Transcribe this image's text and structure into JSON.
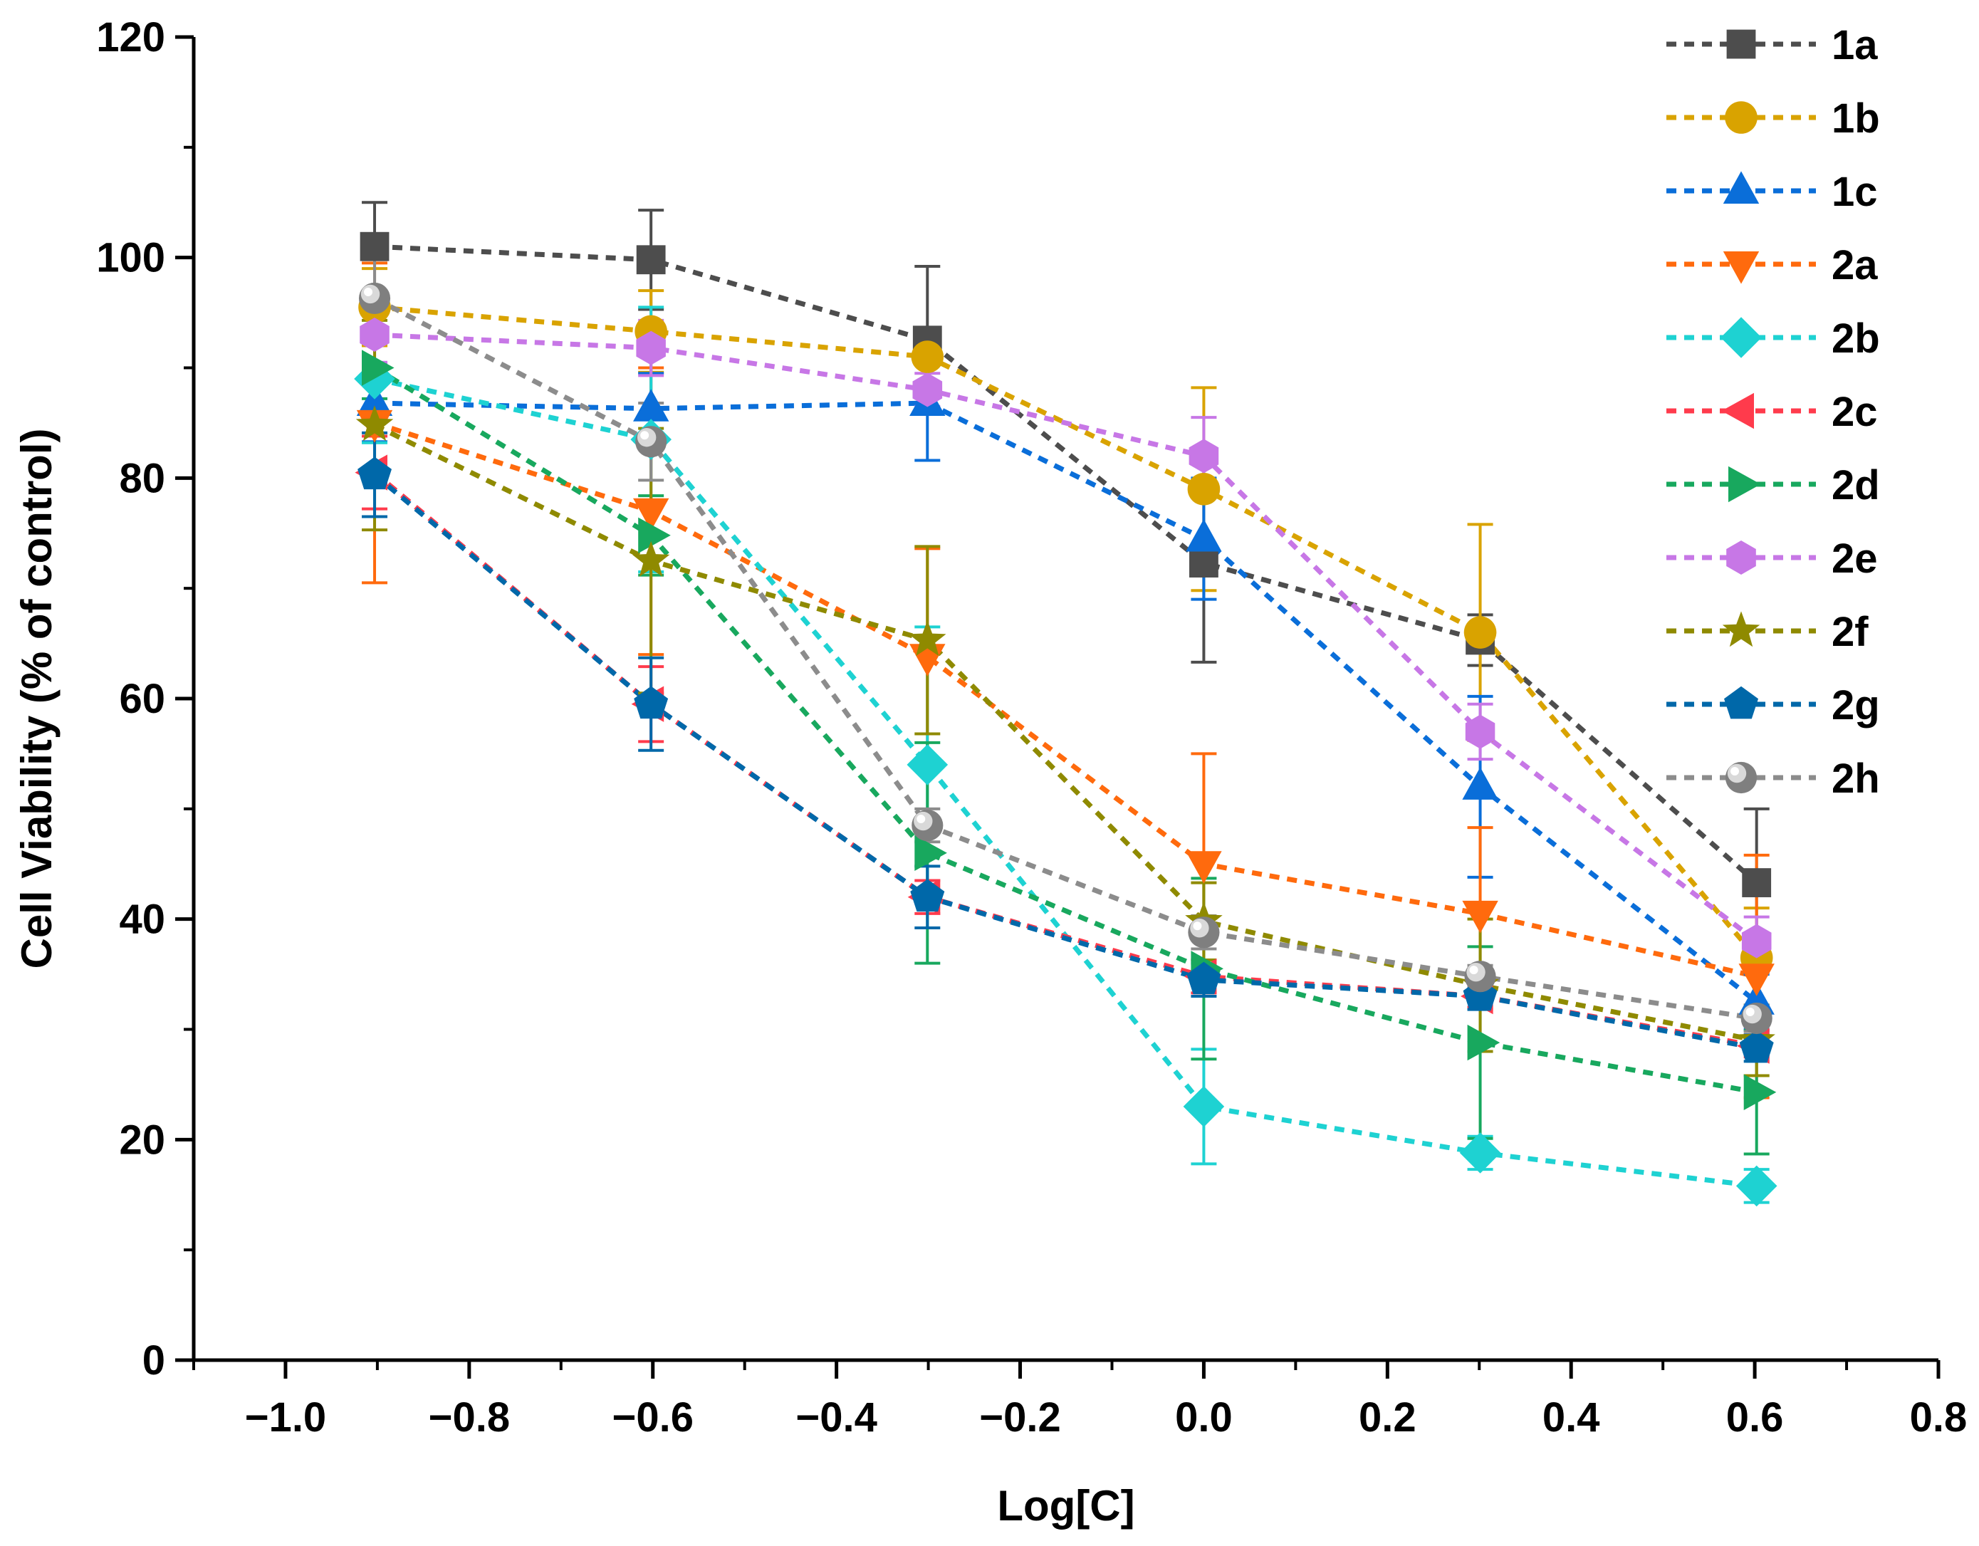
{
  "chart_data": {
    "type": "line",
    "title": "",
    "xlabel": "Log[C]",
    "ylabel": "Cell Viability (% of control)",
    "xlim": [
      -1.1,
      0.8
    ],
    "ylim": [
      0,
      120
    ],
    "xticks": [
      -1.0,
      -0.8,
      -0.6,
      -0.4,
      -0.2,
      0.0,
      0.2,
      0.4,
      0.6,
      0.8
    ],
    "xtick_labels": [
      "−1.0",
      "−0.8",
      "−0.6",
      "−0.4",
      "−0.2",
      "0.0",
      "0.2",
      "0.4",
      "0.6",
      "0.8"
    ],
    "yticks": [
      0,
      20,
      40,
      60,
      80,
      100,
      120
    ],
    "ytick_labels": [
      "0",
      "20",
      "40",
      "60",
      "80",
      "100",
      "120"
    ],
    "grid": false,
    "legend_position": "top-right",
    "x": [
      -0.903,
      -0.602,
      -0.301,
      0.0,
      0.301,
      0.602
    ],
    "series": [
      {
        "name": "1a",
        "color": "#4d4d4d",
        "marker": "square",
        "values": [
          101,
          99.8,
          92.5,
          72.3,
          65.3,
          43.3
        ],
        "errors": [
          4.0,
          4.5,
          6.7,
          9.0,
          2.3,
          6.7
        ]
      },
      {
        "name": "1b",
        "color": "#d9a300",
        "marker": "circle",
        "values": [
          95.5,
          93.3,
          91.0,
          79.0,
          66.0,
          36.5
        ],
        "errors": [
          3.5,
          3.7,
          2.5,
          9.2,
          9.8,
          4.5
        ]
      },
      {
        "name": "1c",
        "color": "#0a6ed9",
        "marker": "triangle-up",
        "values": [
          86.8,
          86.3,
          86.8,
          74.5,
          52.0,
          32.5
        ],
        "errors": [
          3.5,
          3.2,
          5.2,
          5.5,
          8.2,
          2.5
        ]
      },
      {
        "name": "2a",
        "color": "#ff6a0d",
        "marker": "triangle-down",
        "values": [
          85.0,
          77.0,
          63.8,
          45.0,
          40.5,
          34.8
        ],
        "errors": [
          14.5,
          13.0,
          9.8,
          10.0,
          7.8,
          11.0
        ]
      },
      {
        "name": "2b",
        "color": "#1ed2d2",
        "marker": "diamond",
        "values": [
          89.0,
          83.5,
          54.0,
          23.0,
          18.8,
          15.8
        ],
        "errors": [
          5.8,
          12.0,
          12.5,
          5.2,
          1.5,
          1.5
        ]
      },
      {
        "name": "2c",
        "color": "#ff3b4c",
        "marker": "triangle-left",
        "values": [
          80.5,
          59.5,
          42.0,
          34.8,
          33.0,
          28.5
        ],
        "errors": [
          3.3,
          3.4,
          1.5,
          1.5,
          1.0,
          1.0
        ]
      },
      {
        "name": "2d",
        "color": "#18a85e",
        "marker": "triangle-right",
        "values": [
          90.0,
          74.8,
          46.0,
          35.5,
          28.8,
          24.3
        ],
        "errors": [
          2.8,
          3.6,
          10.0,
          8.2,
          8.7,
          5.6
        ]
      },
      {
        "name": "2e",
        "color": "#c777e6",
        "marker": "hexagon",
        "values": [
          93.0,
          91.8,
          88.0,
          82.0,
          57.0,
          38.0
        ],
        "errors": [
          2.5,
          2.5,
          1.5,
          3.5,
          2.5,
          2.2
        ]
      },
      {
        "name": "2f",
        "color": "#8f8a00",
        "marker": "star",
        "values": [
          84.8,
          72.5,
          65.3,
          39.8,
          34.0,
          29.0
        ],
        "errors": [
          9.5,
          12.0,
          8.5,
          3.5,
          6.0,
          3.2
        ]
      },
      {
        "name": "2g",
        "color": "#0068a9",
        "marker": "pentagon",
        "values": [
          80.3,
          59.5,
          42.0,
          34.5,
          33.0,
          28.3
        ],
        "errors": [
          3.8,
          4.2,
          2.8,
          1.5,
          1.2,
          1.2
        ]
      },
      {
        "name": "2h",
        "color": "#8c8c8c",
        "marker": "sphere",
        "values": [
          96.3,
          83.3,
          48.5,
          38.8,
          34.8,
          31.0
        ],
        "errors": [
          3.5,
          3.5,
          1.5,
          1.5,
          1.0,
          1.2
        ]
      }
    ]
  }
}
